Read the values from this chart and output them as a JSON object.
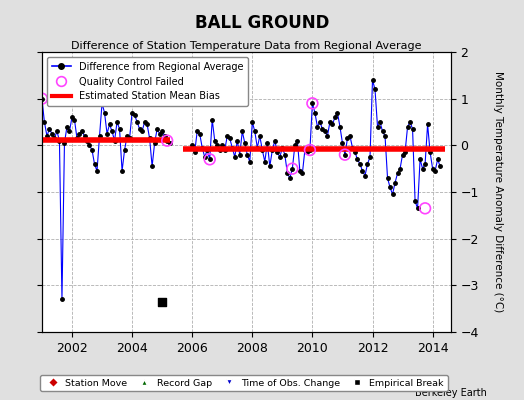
{
  "title": "BALL GROUND",
  "subtitle": "Difference of Station Temperature Data from Regional Average",
  "ylabel": "Monthly Temperature Anomaly Difference (°C)",
  "xlim": [
    2001.0,
    2014.6
  ],
  "ylim": [
    -4,
    2
  ],
  "yticks": [
    -4,
    -3,
    -2,
    -1,
    0,
    1,
    2
  ],
  "xticks": [
    2002,
    2004,
    2006,
    2008,
    2010,
    2012,
    2014
  ],
  "background_color": "#e0e0e0",
  "plot_background": "#ffffff",
  "grid_color": "#b0b0b0",
  "line_color": "#0000ff",
  "bias_color": "#ff0000",
  "marker_color": "#000000",
  "qc_color": "#ff44ff",
  "empirical_break_x": 2005.0,
  "empirical_break_y": -3.35,
  "segment1_bias": 0.12,
  "segment2_bias": -0.07,
  "segment1_start": 2001.0,
  "segment1_end": 2005.25,
  "segment2_start": 2005.7,
  "segment2_end": 2014.4,
  "data_x": [
    2001.0,
    2001.083,
    2001.167,
    2001.25,
    2001.333,
    2001.417,
    2001.5,
    2001.583,
    2001.667,
    2001.75,
    2001.833,
    2001.917,
    2002.0,
    2002.083,
    2002.167,
    2002.25,
    2002.333,
    2002.417,
    2002.5,
    2002.583,
    2002.667,
    2002.75,
    2002.833,
    2002.917,
    2003.0,
    2003.083,
    2003.167,
    2003.25,
    2003.333,
    2003.417,
    2003.5,
    2003.583,
    2003.667,
    2003.75,
    2003.833,
    2003.917,
    2004.0,
    2004.083,
    2004.167,
    2004.25,
    2004.333,
    2004.417,
    2004.5,
    2004.583,
    2004.667,
    2004.75,
    2004.833,
    2004.917,
    2005.0,
    2005.083,
    2005.167,
    2005.25,
    2006.0,
    2006.083,
    2006.167,
    2006.25,
    2006.333,
    2006.417,
    2006.5,
    2006.583,
    2006.667,
    2006.75,
    2006.833,
    2006.917,
    2007.0,
    2007.083,
    2007.167,
    2007.25,
    2007.333,
    2007.417,
    2007.5,
    2007.583,
    2007.667,
    2007.75,
    2007.833,
    2007.917,
    2008.0,
    2008.083,
    2008.167,
    2008.25,
    2008.333,
    2008.417,
    2008.5,
    2008.583,
    2008.667,
    2008.75,
    2008.833,
    2008.917,
    2009.0,
    2009.083,
    2009.167,
    2009.25,
    2009.333,
    2009.417,
    2009.5,
    2009.583,
    2009.667,
    2009.75,
    2009.833,
    2009.917,
    2010.0,
    2010.083,
    2010.167,
    2010.25,
    2010.333,
    2010.417,
    2010.5,
    2010.583,
    2010.667,
    2010.75,
    2010.833,
    2010.917,
    2011.0,
    2011.083,
    2011.167,
    2011.25,
    2011.333,
    2011.417,
    2011.5,
    2011.583,
    2011.667,
    2011.75,
    2011.833,
    2011.917,
    2012.0,
    2012.083,
    2012.167,
    2012.25,
    2012.333,
    2012.417,
    2012.5,
    2012.583,
    2012.667,
    2012.75,
    2012.833,
    2012.917,
    2013.0,
    2013.083,
    2013.167,
    2013.25,
    2013.333,
    2013.417,
    2013.5,
    2013.583,
    2013.667,
    2013.75,
    2013.833,
    2013.917,
    2014.0,
    2014.083,
    2014.167,
    2014.25
  ],
  "data_y": [
    1.0,
    0.5,
    0.2,
    0.35,
    0.25,
    0.15,
    0.3,
    0.1,
    -3.3,
    0.05,
    0.4,
    0.3,
    0.6,
    0.55,
    0.15,
    0.25,
    0.3,
    0.2,
    0.1,
    0.0,
    -0.1,
    -0.4,
    -0.55,
    0.2,
    0.9,
    0.7,
    0.25,
    0.45,
    0.3,
    0.1,
    0.5,
    0.35,
    -0.55,
    -0.1,
    0.2,
    0.15,
    0.7,
    0.65,
    0.5,
    0.35,
    0.3,
    0.5,
    0.45,
    0.15,
    -0.45,
    0.05,
    0.35,
    0.25,
    0.3,
    0.2,
    0.1,
    0.05,
    0.0,
    -0.15,
    0.3,
    0.25,
    -0.05,
    -0.25,
    -0.1,
    -0.3,
    0.55,
    0.1,
    0.0,
    -0.1,
    0.0,
    -0.1,
    0.2,
    0.15,
    -0.05,
    -0.25,
    0.1,
    -0.2,
    0.3,
    0.05,
    -0.2,
    -0.35,
    0.5,
    0.3,
    -0.05,
    0.2,
    -0.1,
    -0.35,
    0.05,
    -0.45,
    -0.1,
    0.1,
    -0.15,
    -0.25,
    -0.05,
    -0.2,
    -0.6,
    -0.7,
    -0.5,
    0.0,
    0.1,
    -0.55,
    -0.6,
    -0.1,
    -0.15,
    -0.1,
    0.9,
    0.7,
    0.4,
    0.5,
    0.35,
    0.3,
    0.2,
    0.5,
    0.45,
    0.6,
    0.7,
    0.4,
    0.05,
    -0.2,
    0.15,
    0.2,
    -0.05,
    -0.15,
    -0.3,
    -0.4,
    -0.55,
    -0.65,
    -0.4,
    -0.25,
    1.4,
    1.2,
    0.4,
    0.5,
    0.3,
    0.2,
    -0.7,
    -0.9,
    -1.05,
    -0.8,
    -0.6,
    -0.5,
    -0.2,
    -0.15,
    0.4,
    0.5,
    0.35,
    -1.2,
    -1.35,
    -0.3,
    -0.5,
    -0.4,
    0.45,
    -0.15,
    -0.5,
    -0.55,
    -0.3,
    -0.45
  ],
  "qc_failed_x": [
    2001.0,
    2005.167,
    2006.583,
    2009.333,
    2009.917,
    2010.0,
    2011.083,
    2013.75
  ],
  "qc_failed_y": [
    1.0,
    0.1,
    -0.3,
    -0.5,
    -0.1,
    0.9,
    -0.2,
    -1.35
  ],
  "footnote": "Berkeley Earth"
}
